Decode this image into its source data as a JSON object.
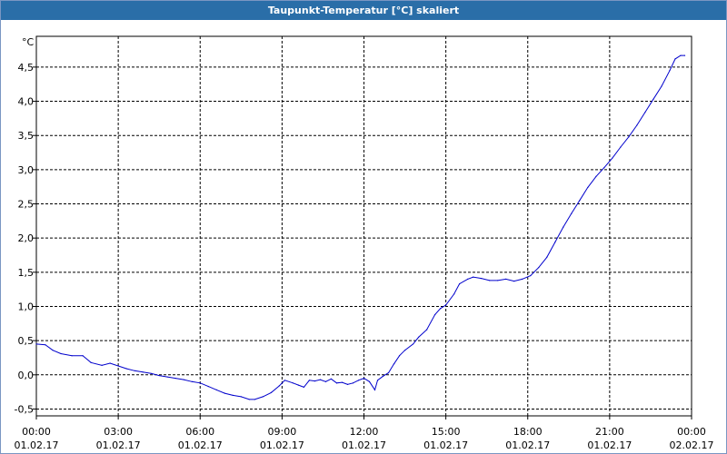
{
  "window": {
    "title": "Taupunkt-Temperatur [°C] skaliert"
  },
  "colors": {
    "titlebar": "#2a6ea8",
    "line": "#0000cc",
    "grid": "#000000",
    "frame": "#7a96c2"
  },
  "chart_data": {
    "type": "line",
    "title": "Taupunkt-Temperatur [°C] skaliert",
    "ylabel": "°C",
    "xlabel": "",
    "ylim": [
      -0.6,
      4.95
    ],
    "xlim": [
      0,
      24
    ],
    "grid": true,
    "y_ticks": [
      {
        "value": -0.5,
        "label": "-0,5"
      },
      {
        "value": 0.0,
        "label": "0,0"
      },
      {
        "value": 0.5,
        "label": "0,5"
      },
      {
        "value": 1.0,
        "label": "1,0"
      },
      {
        "value": 1.5,
        "label": "1,5"
      },
      {
        "value": 2.0,
        "label": "2,0"
      },
      {
        "value": 2.5,
        "label": "2,5"
      },
      {
        "value": 3.0,
        "label": "3,0"
      },
      {
        "value": 3.5,
        "label": "3,5"
      },
      {
        "value": 4.0,
        "label": "4,0"
      },
      {
        "value": 4.5,
        "label": "4,5"
      }
    ],
    "x_ticks": [
      {
        "value": 0,
        "time": "00:00",
        "date": "01.02.17"
      },
      {
        "value": 3,
        "time": "03:00",
        "date": "01.02.17"
      },
      {
        "value": 6,
        "time": "06:00",
        "date": "01.02.17"
      },
      {
        "value": 9,
        "time": "09:00",
        "date": "01.02.17"
      },
      {
        "value": 12,
        "time": "12:00",
        "date": "01.02.17"
      },
      {
        "value": 15,
        "time": "15:00",
        "date": "01.02.17"
      },
      {
        "value": 18,
        "time": "18:00",
        "date": "01.02.17"
      },
      {
        "value": 21,
        "time": "21:00",
        "date": "01.02.17"
      },
      {
        "value": 24,
        "time": "00:00",
        "date": "02.02.17"
      }
    ],
    "series": [
      {
        "x": [
          0,
          0.33,
          0.6,
          0.9,
          1.3,
          1.7,
          2.0,
          2.4,
          2.7,
          3.0,
          3.3,
          3.6,
          3.9,
          4.2,
          4.5,
          4.8,
          5.1,
          5.4,
          5.7,
          6.0,
          6.3,
          6.6,
          6.9,
          7.2,
          7.5,
          7.8,
          8.0,
          8.3,
          8.6,
          8.9,
          9.1,
          9.4,
          9.6,
          9.8,
          10.0,
          10.2,
          10.4,
          10.6,
          10.8,
          11.0,
          11.2,
          11.4,
          11.6,
          11.8,
          12.0,
          12.2,
          12.4,
          12.5,
          12.7,
          12.9,
          13.1,
          13.3,
          13.5,
          13.8,
          14.0,
          14.3,
          14.6,
          14.8,
          15.0,
          15.3,
          15.5,
          15.8,
          16.0,
          16.3,
          16.6,
          16.9,
          17.2,
          17.5,
          17.8,
          18.1,
          18.4,
          18.7,
          19.0,
          19.3,
          19.6,
          19.9,
          20.2,
          20.5,
          20.8,
          21.1,
          21.4,
          21.7,
          22.0,
          22.3,
          22.6,
          22.9,
          23.2,
          23.4,
          23.6,
          23.75
        ],
        "values": [
          0.45,
          0.44,
          0.36,
          0.31,
          0.28,
          0.28,
          0.18,
          0.14,
          0.17,
          0.13,
          0.09,
          0.06,
          0.04,
          0.02,
          -0.01,
          -0.03,
          -0.05,
          -0.07,
          -0.1,
          -0.12,
          -0.17,
          -0.22,
          -0.27,
          -0.3,
          -0.32,
          -0.36,
          -0.36,
          -0.32,
          -0.26,
          -0.16,
          -0.08,
          -0.12,
          -0.15,
          -0.18,
          -0.08,
          -0.09,
          -0.07,
          -0.1,
          -0.06,
          -0.12,
          -0.11,
          -0.14,
          -0.12,
          -0.08,
          -0.05,
          -0.1,
          -0.22,
          -0.08,
          -0.02,
          0.03,
          0.16,
          0.28,
          0.36,
          0.45,
          0.55,
          0.66,
          0.88,
          0.97,
          1.02,
          1.18,
          1.33,
          1.4,
          1.43,
          1.41,
          1.38,
          1.38,
          1.4,
          1.37,
          1.4,
          1.45,
          1.57,
          1.72,
          1.94,
          2.16,
          2.36,
          2.55,
          2.74,
          2.9,
          3.03,
          3.17,
          3.33,
          3.48,
          3.65,
          3.84,
          4.03,
          4.22,
          4.45,
          4.62,
          4.67,
          4.67
        ]
      }
    ]
  }
}
